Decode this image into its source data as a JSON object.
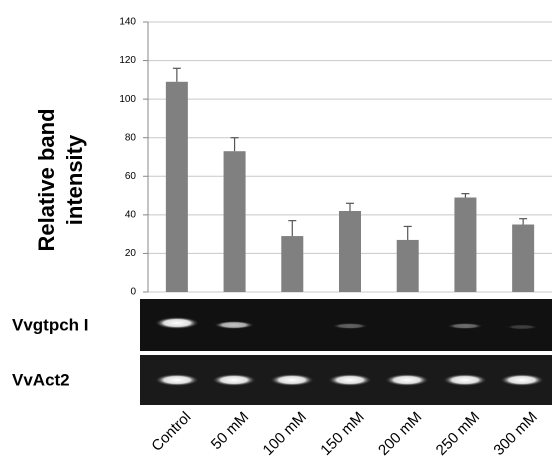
{
  "chart_data": {
    "type": "bar",
    "ylabel": [
      "Relative band",
      "intensity"
    ],
    "categories": [
      "Control",
      "50 mM",
      "100 mM",
      "150 mM",
      "200 mM",
      "250 mM",
      "300 mM"
    ],
    "values": [
      109,
      73,
      29,
      42,
      27,
      49,
      35
    ],
    "errors": [
      7,
      7,
      8,
      4,
      7,
      2,
      3
    ],
    "color": "#808080",
    "ylim": [
      0,
      140
    ],
    "yticks": [
      0,
      20,
      40,
      60,
      80,
      100,
      120,
      140
    ],
    "grid": true,
    "annotations": [
      "Vvgtpch I",
      "VvAct2"
    ]
  }
}
